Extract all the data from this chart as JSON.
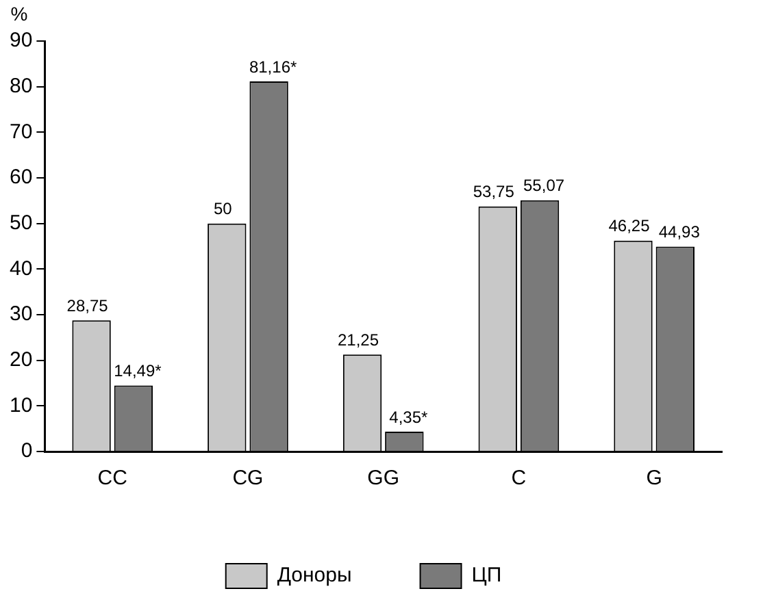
{
  "chart_data": {
    "type": "bar",
    "ylabel": "%",
    "categories": [
      "CC",
      "CG",
      "GG",
      "C",
      "G"
    ],
    "series": [
      {
        "name": "Доноры",
        "color": "#c8c8c8",
        "values": [
          28.75,
          50,
          21.25,
          53.75,
          46.25
        ],
        "value_labels": [
          "28,75",
          "50",
          "21,25",
          "53,75",
          "46,25"
        ]
      },
      {
        "name": "ЦП",
        "color": "#7a7a7a",
        "values": [
          14.49,
          81.16,
          4.35,
          55.07,
          44.93
        ],
        "value_labels": [
          "14,49*",
          "81,16*",
          "4,35*",
          "55,07",
          "44,93"
        ]
      }
    ],
    "ylim": [
      0,
      90
    ],
    "yticks": [
      0,
      10,
      20,
      30,
      40,
      50,
      60,
      70,
      80,
      90
    ],
    "grid": false,
    "legend": "bottom"
  }
}
